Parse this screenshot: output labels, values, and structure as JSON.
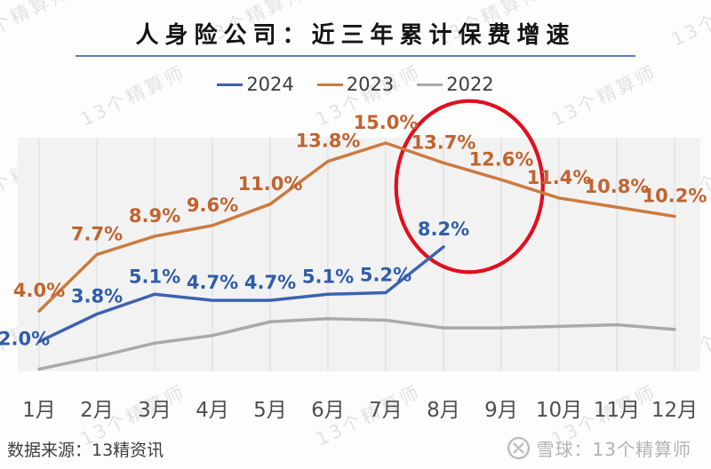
{
  "title": "人身险公司：近三年累计保费增速",
  "watermark": {
    "text": "13个精算师"
  },
  "colors": {
    "plot_band": "#f2f2f3",
    "gridline": "#dbdbdb",
    "axis_text": "#4f4f4f",
    "title_rule": "#5b7ec2",
    "annotation_red": "#e00f1e"
  },
  "chart_data": {
    "type": "line",
    "title": "人身险公司：近三年累计保费增速",
    "categories": [
      "1月",
      "2月",
      "3月",
      "4月",
      "5月",
      "6月",
      "7月",
      "8月",
      "9月",
      "10月",
      "11月",
      "12月"
    ],
    "series": [
      {
        "name": "2024",
        "color": "#3c63ae",
        "label_color": "#2f5da9",
        "values": [
          2.0,
          3.8,
          5.1,
          4.7,
          4.7,
          5.1,
          5.2,
          8.2
        ],
        "data_labels": true
      },
      {
        "name": "2023",
        "color": "#cd7a3d",
        "label_color": "#c2632e",
        "values": [
          4.0,
          7.7,
          8.9,
          9.6,
          11.0,
          13.8,
          15.0,
          13.7,
          12.6,
          11.4,
          10.8,
          10.2
        ],
        "data_labels": true
      },
      {
        "name": "2022",
        "color": "#a9a9a9",
        "label_color": "#a9a9a9",
        "values": [
          0.2,
          1.0,
          1.9,
          2.4,
          3.3,
          3.5,
          3.4,
          2.9,
          2.9,
          3.0,
          3.1,
          2.8
        ],
        "data_labels": false
      }
    ],
    "ylim": [
      0,
      15.3
    ],
    "grid": "vertical-only",
    "legend_position": "top-center",
    "annotation": {
      "shape": "ellipse",
      "color": "#e00f1e",
      "month_center": 8.45,
      "value_center": 12.15,
      "month_radius": 1.27,
      "value_radius": 5.6,
      "stroke_width": 4.2
    }
  },
  "footer": {
    "source": "数据来源：13精资讯",
    "brand": "雪球：13个精算师"
  }
}
